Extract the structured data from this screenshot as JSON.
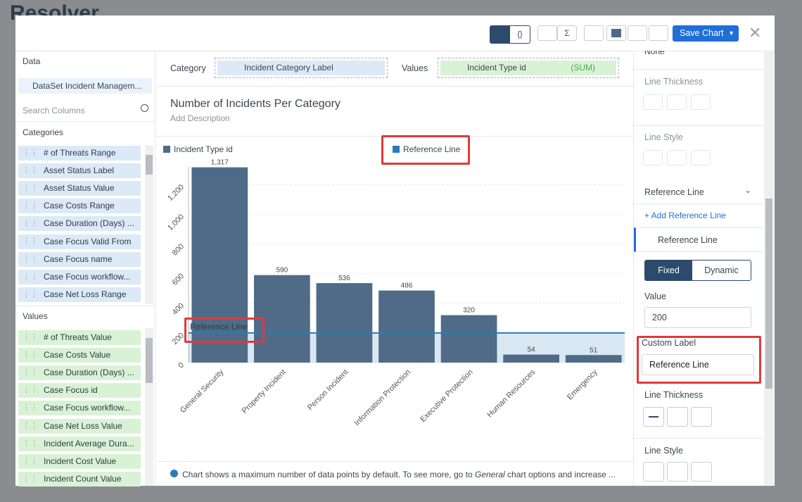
{
  "background": {
    "logo": "Resolver"
  },
  "toolbar": {
    "save": "Save Chart"
  },
  "left_panel": {
    "data_heading": "Data",
    "dataset": "DataSet Incident Managem...",
    "search_placeholder": "Search Columns",
    "categories_heading": "Categories",
    "categories": [
      "# of Threats Range",
      "Asset Status Label",
      "Asset Status Value",
      "Case Costs Range",
      "Case Duration (Days) ...",
      "Case Focus Valid From",
      "Case Focus name",
      "Case Focus workflow...",
      "Case Net Loss Range"
    ],
    "values_heading": "Values",
    "values": [
      "# of Threats Value",
      "Case Costs Value",
      "Case Duration (Days) ...",
      "Case Focus id",
      "Case Focus workflow...",
      "Case Net Loss Value",
      "Incident Average Dura...",
      "Incident Cost Value",
      "Incident Count Value"
    ]
  },
  "config_row": {
    "category_label": "Category",
    "category_field": "Incident Category Label",
    "values_label": "Values",
    "values_field": "Incident Type id",
    "aggregation": "(SUM)"
  },
  "chart": {
    "type": "bar",
    "title": "Number of Incidents Per Category",
    "description": "Add Description",
    "series_name": "Incident Type id",
    "color": "#4f6b87",
    "categories": [
      "General Security",
      "Property Incident",
      "Person Incident",
      "Information Protection",
      "Executive Protection",
      "Human Resources",
      "Emergency"
    ],
    "values": [
      1317,
      590,
      536,
      486,
      320,
      54,
      51
    ],
    "value_labels": [
      "1,317",
      "590",
      "536",
      "486",
      "320",
      "54",
      "51"
    ],
    "ylim": [
      0,
      1320
    ],
    "yticks": [
      0,
      200,
      400,
      600,
      800,
      {
        "value": 1000,
        "label": "1,000"
      },
      {
        "value": 1200,
        "label": "1,200"
      }
    ],
    "grid": true,
    "reference_line": {
      "name": "Reference Line",
      "value": 200,
      "label": "Reference Line",
      "color": "#2b7bb9"
    }
  },
  "footer_note": {
    "before": "Chart shows a maximum number of data points by default. To see more, go to ",
    "italic": "General",
    "after": " chart options and increase ..."
  },
  "right_panel": {
    "dropdown": "None",
    "thickness_1": "Line Thickness",
    "style_1": "Line Style",
    "ref_heading": "Reference Line",
    "add_ref": "+ Add Reference Line",
    "ref_item": "Reference Line",
    "fixed": "Fixed",
    "dynamic": "Dynamic",
    "value_label": "Value",
    "value": "200",
    "custom_label_heading": "Custom Label",
    "custom_label": "Reference Line",
    "thickness_2": "Line Thickness",
    "style_2": "Line Style"
  }
}
